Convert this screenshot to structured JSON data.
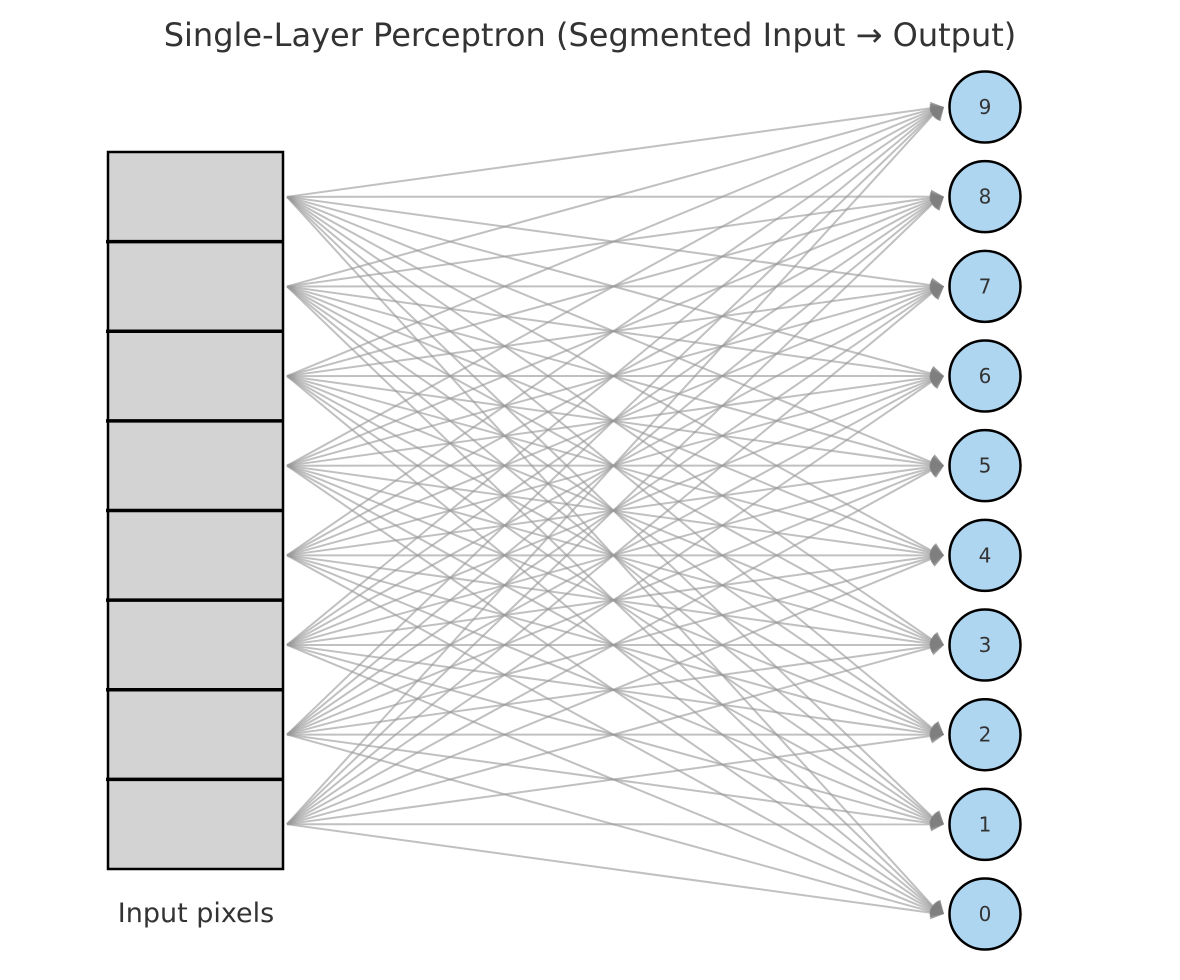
{
  "title": "Single-Layer Perceptron (Segmented Input → Output)",
  "input_block": {
    "label": "Input pixels",
    "segment_count": 8,
    "fill_color": "#d3d3d3",
    "border_color": "#000000"
  },
  "output_layer": {
    "node_labels": [
      "9",
      "8",
      "7",
      "6",
      "5",
      "4",
      "3",
      "2",
      "1",
      "0"
    ],
    "fill_color": "#aed6f1",
    "border_color": "#000000"
  },
  "connections": {
    "type": "fully-connected",
    "directed": true,
    "color": "#999999"
  }
}
